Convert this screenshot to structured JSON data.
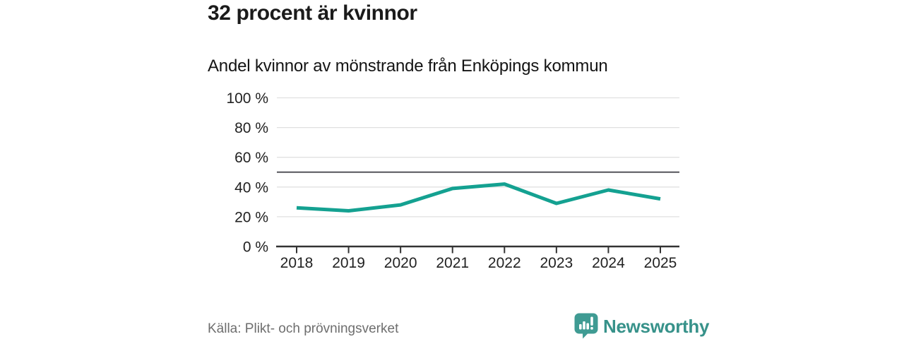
{
  "header": {
    "title": "32 procent är kvinnor",
    "subtitle": "Andel kvinnor av mönstrande från Enköpings kommun"
  },
  "footer": {
    "source": "Källa: Plikt- och prövningsverket",
    "brand_name": "Newsworthy",
    "brand_icon": "bar-chart-speech-bubble-icon"
  },
  "colors": {
    "line": "#14a191",
    "grid": "#e0e0e0",
    "axis": "#333333",
    "reference_line": "#55555a",
    "tick_text": "#222222",
    "title_text": "#1b1b1b",
    "source_text": "#6e6e6e",
    "brand": "#37928a",
    "brand_icon": "#3f9b93"
  },
  "chart_data": {
    "type": "line",
    "title": "32 procent är kvinnor",
    "subtitle": "Andel kvinnor av mönstrande från Enköpings kommun",
    "x": [
      "2018",
      "2019",
      "2020",
      "2021",
      "2022",
      "2023",
      "2024",
      "2025"
    ],
    "series": [
      {
        "name": "Andel kvinnor av mönstrande",
        "color": "#14a191",
        "values": [
          26,
          24,
          28,
          39,
          42,
          29,
          38,
          32
        ]
      }
    ],
    "ylim": [
      0,
      100
    ],
    "yticks": [
      0,
      20,
      40,
      60,
      80,
      100
    ],
    "ytick_labels": [
      "0 %",
      "20 %",
      "40 %",
      "60 %",
      "80 %",
      "100 %"
    ],
    "reference_line": 50,
    "grid": "horizontal",
    "legend": "none",
    "source": "Källa: Plikt- och prövningsverket"
  }
}
